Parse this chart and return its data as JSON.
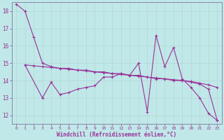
{
  "xlabel": "Windchill (Refroidissement éolien,°C)",
  "xlim": [
    -0.5,
    23.5
  ],
  "ylim": [
    11.5,
    18.5
  ],
  "yticks": [
    12,
    13,
    14,
    15,
    16,
    17,
    18
  ],
  "xticks": [
    0,
    1,
    2,
    3,
    4,
    5,
    6,
    7,
    8,
    9,
    10,
    11,
    12,
    13,
    14,
    15,
    16,
    17,
    18,
    19,
    20,
    21,
    22,
    23
  ],
  "bg_color": "#c0e8e8",
  "line_color": "#993399",
  "grid_color": "#aad4d4",
  "line1_x": [
    0,
    1,
    2,
    3,
    4,
    5,
    6,
    7,
    8,
    9,
    10,
    11,
    12,
    13,
    14,
    15,
    16,
    17,
    18,
    19,
    20,
    21,
    22,
    23
  ],
  "line1_y": [
    18.4,
    18.0,
    16.5,
    15.0,
    14.8,
    14.7,
    14.7,
    14.6,
    14.6,
    14.5,
    14.5,
    14.4,
    14.4,
    14.3,
    14.3,
    14.2,
    14.1,
    14.1,
    14.0,
    14.0,
    13.9,
    13.8,
    13.5,
    11.7
  ],
  "line2_x": [
    1,
    3,
    4,
    5,
    6,
    7,
    8,
    9,
    10,
    11,
    12,
    13,
    14,
    15,
    16,
    17,
    18,
    19,
    20,
    21,
    22,
    23
  ],
  "line2_y": [
    14.9,
    13.0,
    13.9,
    13.2,
    13.3,
    13.5,
    13.6,
    13.7,
    14.2,
    14.2,
    14.4,
    14.3,
    15.0,
    12.2,
    16.6,
    14.8,
    15.9,
    14.1,
    13.6,
    13.0,
    12.1,
    11.7
  ],
  "line3_x": [
    1,
    2,
    3,
    4,
    5,
    6,
    7,
    8,
    9,
    10,
    11,
    12,
    13,
    14,
    15,
    16,
    17,
    18,
    19,
    20,
    21,
    22,
    23
  ],
  "line3_y": [
    14.9,
    14.85,
    14.8,
    14.75,
    14.7,
    14.65,
    14.6,
    14.55,
    14.5,
    14.45,
    14.4,
    14.35,
    14.3,
    14.25,
    14.2,
    14.15,
    14.1,
    14.05,
    14.0,
    13.95,
    13.85,
    13.75,
    13.6
  ],
  "markersize": 3,
  "linewidth": 0.8
}
